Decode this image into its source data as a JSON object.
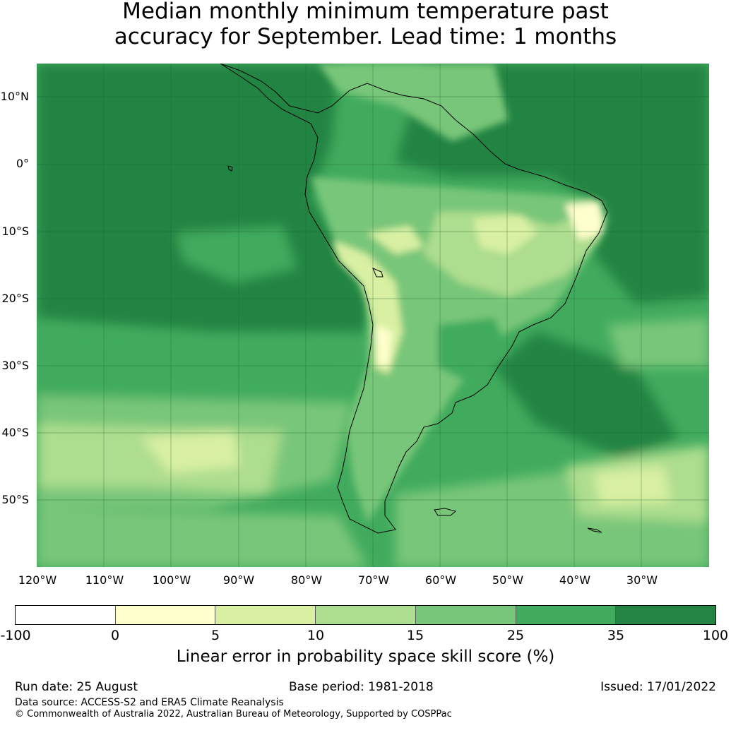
{
  "title": {
    "line1": "Median monthly minimum temperature past",
    "line2": "accuracy for September. Lead time: 1 months"
  },
  "map": {
    "region": "South America",
    "land_outline_color": "#000000",
    "latitude_labels": [
      "10°N",
      "0°",
      "10°S",
      "20°S",
      "30°S",
      "40°S",
      "50°S"
    ],
    "longitude_labels": [
      "120°W",
      "110°W",
      "100°W",
      "90°W",
      "80°W",
      "70°W",
      "60°W",
      "50°W",
      "40°W",
      "30°W"
    ]
  },
  "colorbar": {
    "ticks": [
      "-100",
      "0",
      "5",
      "10",
      "15",
      "25",
      "35",
      "100"
    ],
    "colors": [
      "#ffffff",
      "#ffffcc",
      "#d9f0a3",
      "#addd8e",
      "#78c679",
      "#41ab5d",
      "#238443"
    ],
    "label": "Linear error in probability space skill score (%)"
  },
  "footer": {
    "run_date": "Run date: 25 August",
    "base_period": "Base period: 1981-2018",
    "issued": "Issued: 17/01/2022",
    "data_source": "Data source: ACCESS-S2 and ERA5 Climate Reanalysis",
    "copyright": "© Commonwealth of Australia 2022, Australian Bureau of Meteorology, Supported by COSPPac"
  }
}
